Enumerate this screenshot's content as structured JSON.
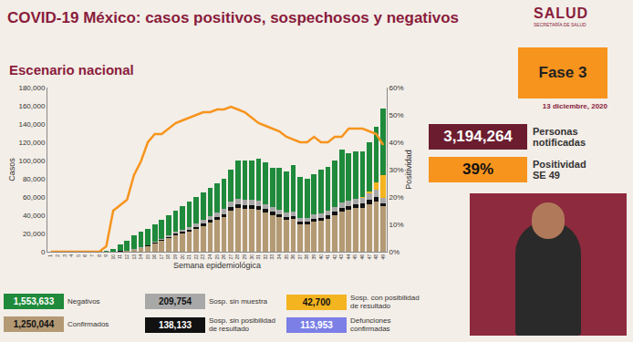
{
  "chart_data": {
    "type": "bar",
    "title": "COVID-19 México: casos positivos, sospechosos y negativos",
    "subtitle": "Escenario nacional",
    "x_label": "Semana epidemiológica",
    "y_label": "Casos",
    "y2_label": "Positividad",
    "stacked": true,
    "grid": false,
    "categories": [
      "1",
      "2",
      "3",
      "4",
      "5",
      "6",
      "7",
      "8",
      "9",
      "10",
      "11",
      "12",
      "13",
      "14",
      "15",
      "16",
      "17",
      "18",
      "19",
      "20",
      "21",
      "22",
      "23",
      "24",
      "25",
      "26",
      "27",
      "28",
      "29",
      "30",
      "31",
      "32",
      "33",
      "34",
      "35",
      "36",
      "37",
      "38",
      "39",
      "40",
      "41",
      "42",
      "43",
      "44",
      "45",
      "46",
      "47",
      "48",
      "49"
    ],
    "ylim": [
      0,
      180000
    ],
    "yticks": [
      0,
      {
        "value": 20000,
        "label": "20,000"
      },
      {
        "value": 40000,
        "label": "40,000"
      },
      {
        "value": 60000,
        "label": "60,000"
      },
      {
        "value": 80000,
        "label": "80,000"
      },
      {
        "value": 100000,
        "label": "100,000"
      },
      {
        "value": 120000,
        "label": "120,000"
      },
      {
        "value": 140000,
        "label": "140,000"
      },
      {
        "value": 160000,
        "label": "160,000"
      },
      {
        "value": 180000,
        "label": "180,000"
      }
    ],
    "y2lim": [
      0,
      60
    ],
    "y2ticks": [
      {
        "value": 0,
        "label": "0%"
      },
      {
        "value": 10,
        "label": "10%"
      },
      {
        "value": 20,
        "label": "20%"
      },
      {
        "value": 30,
        "label": "30%"
      },
      {
        "value": 40,
        "label": "40%"
      },
      {
        "value": 50,
        "label": "50%"
      },
      {
        "value": 60,
        "label": "60%"
      }
    ],
    "series": [
      {
        "name": "Confirmados",
        "type": "bar",
        "color": "#b39a74",
        "values": [
          0,
          0,
          0,
          0,
          0,
          0,
          0,
          0,
          30,
          200,
          500,
          1000,
          2000,
          4000,
          6000,
          9000,
          12000,
          15000,
          18000,
          20000,
          22000,
          25000,
          28000,
          32000,
          35000,
          38000,
          45000,
          48000,
          47000,
          47000,
          46000,
          43000,
          40000,
          38000,
          35000,
          36000,
          30000,
          30000,
          33000,
          34000,
          36000,
          40000,
          44000,
          46000,
          48000,
          48000,
          52000,
          55000,
          50000
        ]
      },
      {
        "name": "Sosp. sin posibilidad de resultado",
        "type": "bar",
        "color": "#111111",
        "values": [
          0,
          0,
          0,
          0,
          0,
          0,
          0,
          0,
          0,
          20,
          50,
          100,
          200,
          400,
          600,
          900,
          1200,
          1500,
          1800,
          2000,
          2200,
          2500,
          2800,
          3000,
          3200,
          3500,
          4000,
          4200,
          4200,
          4200,
          4000,
          3800,
          3600,
          3400,
          3200,
          3200,
          3000,
          3000,
          3200,
          3400,
          3600,
          3800,
          4000,
          4200,
          4400,
          4600,
          5000,
          5000,
          3000
        ]
      },
      {
        "name": "Sosp. sin muestra",
        "type": "bar",
        "color": "#a8a8a8",
        "values": [
          0,
          0,
          0,
          0,
          0,
          0,
          0,
          0,
          0,
          50,
          100,
          200,
          400,
          600,
          800,
          1000,
          1200,
          1500,
          2000,
          2500,
          3000,
          3500,
          4000,
          4500,
          5000,
          5500,
          6000,
          6000,
          6000,
          6000,
          6000,
          5500,
          5500,
          5000,
          5000,
          5000,
          4500,
          4500,
          5000,
          5000,
          5000,
          5500,
          6000,
          6000,
          6000,
          6500,
          7000,
          8000,
          6000
        ]
      },
      {
        "name": "Sosp. con posibilidad de resultado",
        "type": "bar",
        "color": "#f4b41f",
        "values": [
          0,
          0,
          0,
          0,
          0,
          0,
          0,
          0,
          0,
          0,
          0,
          0,
          0,
          0,
          0,
          0,
          0,
          0,
          0,
          0,
          0,
          0,
          0,
          0,
          0,
          0,
          0,
          0,
          0,
          0,
          0,
          0,
          0,
          0,
          0,
          0,
          0,
          0,
          0,
          0,
          0,
          0,
          0,
          0,
          0,
          500,
          2000,
          8000,
          25000
        ]
      },
      {
        "name": "Negativos",
        "type": "bar",
        "color": "#1f8a3b",
        "values": [
          200,
          300,
          400,
          500,
          600,
          700,
          800,
          900,
          1000,
          2730,
          7350,
          10700,
          15400,
          17000,
          17600,
          19100,
          20600,
          22000,
          23200,
          25500,
          27800,
          29000,
          30200,
          30500,
          31800,
          33000,
          35000,
          41800,
          42800,
          42800,
          46000,
          45700,
          42900,
          45600,
          44800,
          50800,
          44500,
          42500,
          43800,
          47600,
          48400,
          50700,
          58000,
          51800,
          51600,
          50400,
          54000,
          61000,
          73000
        ]
      },
      {
        "name": "Positividad",
        "type": "line",
        "axis": "y2",
        "color": "#f7941d",
        "values": [
          0,
          0,
          0,
          0,
          0,
          0,
          0,
          0,
          2,
          15,
          17,
          19,
          28,
          33,
          40,
          43,
          43,
          45,
          47,
          48,
          49,
          50,
          51,
          51,
          52,
          52,
          53,
          52,
          51,
          49,
          47,
          46,
          45,
          44,
          42,
          41,
          40,
          40,
          42,
          40,
          40,
          42,
          42,
          45,
          45,
          45,
          44,
          43,
          39
        ]
      }
    ]
  },
  "page": {
    "logo": "SALUD",
    "logo_sub": "SECRETARÍA DE SALUD",
    "phase": "Fase 3",
    "date": "13 diciembre, 2020",
    "stats": [
      {
        "value": "3,194,264",
        "label": [
          "Personas",
          "notificadas"
        ],
        "color": "#6b1d2f"
      },
      {
        "value": "39%",
        "label": [
          "Positividad",
          "SE 49"
        ],
        "color": "#f7941d"
      }
    ],
    "legend": [
      {
        "name": "Negativos",
        "value": "1,553,633",
        "color": "#1f8a3b"
      },
      {
        "name": "Sosp. sin muestra",
        "value": "209,754",
        "color": "#a8a8a8"
      },
      {
        "name": "Sosp. con posibilidad de resultado",
        "value": "42,700",
        "color": "#f4b41f"
      },
      {
        "name": "Confirmados",
        "value": "1,250,044",
        "color": "#b39a74"
      },
      {
        "name": "Sosp. sin posibilidad de resultado",
        "value": "138,133",
        "color": "#111111"
      },
      {
        "name": "Defunciones confirmadas",
        "value": "113,953",
        "color": "#7b7fe6"
      }
    ]
  }
}
